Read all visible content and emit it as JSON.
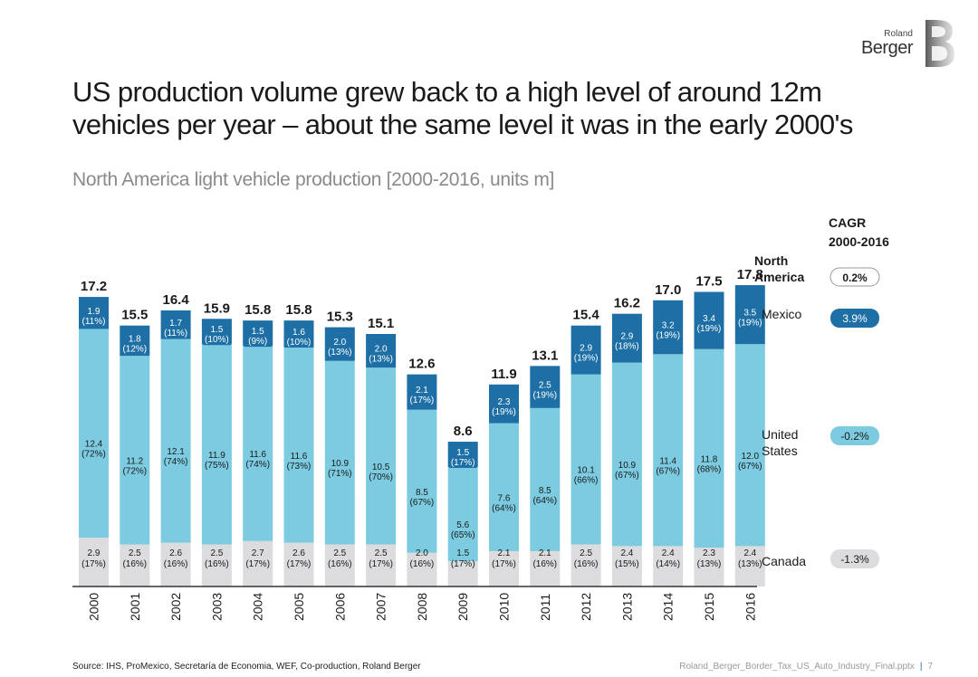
{
  "header": {
    "title_line1": "US production volume grew back to a high level of around 12m",
    "title_line2": "vehicles per year – about the same level it was in the early 2000's",
    "subtitle": "North America light vehicle production [2000-2016, units m]"
  },
  "logo": {
    "line1": "Roland",
    "line2": "Berger"
  },
  "footer": {
    "source": "Source: IHS, ProMexico, Secretaría de Economia, WEF, Co-production, Roland Berger",
    "file": "Roland_Berger_Border_Tax_US_Auto_Industry_Final.pptx",
    "page": "7"
  },
  "colors": {
    "mexico": "#1d6fa5",
    "us": "#7ccbe0",
    "canada": "#dcdcdf",
    "axis": "#333333"
  },
  "chart_data": {
    "type": "bar",
    "stacked": true,
    "title": "North America light vehicle production [2000-2016, units m]",
    "categories": [
      "2000",
      "2001",
      "2002",
      "2003",
      "2004",
      "2005",
      "2006",
      "2007",
      "2008",
      "2009",
      "2010",
      "2011",
      "2012",
      "2013",
      "2014",
      "2015",
      "2016"
    ],
    "totals": [
      "17.2",
      "15.5",
      "16.4",
      "15.9",
      "15.8",
      "15.8",
      "15.3",
      "15.1",
      "12.6",
      "8.6",
      "11.9",
      "13.1",
      "15.4",
      "16.2",
      "17.0",
      "17.5",
      "17.8"
    ],
    "total_values": [
      17.2,
      15.5,
      16.4,
      15.9,
      15.8,
      15.8,
      15.3,
      15.1,
      12.6,
      8.6,
      11.9,
      13.1,
      15.4,
      16.2,
      17.0,
      17.5,
      17.8
    ],
    "series": [
      {
        "name": "Canada",
        "values": [
          2.9,
          2.5,
          2.6,
          2.5,
          2.7,
          2.6,
          2.5,
          2.5,
          2.0,
          1.5,
          2.1,
          2.1,
          2.5,
          2.4,
          2.4,
          2.3,
          2.4
        ],
        "value_labels": [
          "2.9",
          "2.5",
          "2.6",
          "2.5",
          "2.7",
          "2.6",
          "2.5",
          "2.5",
          "2.0",
          "1.5",
          "2.1",
          "2.1",
          "2.5",
          "2.4",
          "2.4",
          "2.3",
          "2.4"
        ],
        "shares": [
          "(17%)",
          "(16%)",
          "(16%)",
          "(16%)",
          "(17%)",
          "(17%)",
          "(16%)",
          "(17%)",
          "(16%)",
          "(17%)",
          "(17%)",
          "(16%)",
          "(16%)",
          "(15%)",
          "(14%)",
          "(13%)",
          "(13%)"
        ]
      },
      {
        "name": "United States",
        "values": [
          12.4,
          11.2,
          12.1,
          11.9,
          11.6,
          11.6,
          10.9,
          10.5,
          8.5,
          5.6,
          7.6,
          8.5,
          10.1,
          10.9,
          11.4,
          11.8,
          12.0
        ],
        "value_labels": [
          "12.4",
          "11.2",
          "12.1",
          "11.9",
          "11.6",
          "11.6",
          "10.9",
          "10.5",
          "8.5",
          "5.6",
          "7.6",
          "8.5",
          "10.1",
          "10.9",
          "11.4",
          "11.8",
          "12.0"
        ],
        "shares": [
          "(72%)",
          "(72%)",
          "(74%)",
          "(75%)",
          "(74%)",
          "(73%)",
          "(71%)",
          "(70%)",
          "(67%)",
          "(65%)",
          "(64%)",
          "(64%)",
          "(66%)",
          "(67%)",
          "(67%)",
          "(68%)",
          "(67%)"
        ]
      },
      {
        "name": "Mexico",
        "values": [
          1.9,
          1.8,
          1.7,
          1.5,
          1.5,
          1.6,
          2.0,
          2.0,
          2.1,
          1.5,
          2.3,
          2.5,
          2.9,
          2.9,
          3.2,
          3.4,
          3.5
        ],
        "value_labels": [
          "1.9",
          "1.8",
          "1.7",
          "1.5",
          "1.5",
          "1.6",
          "2.0",
          "2.0",
          "2.1",
          "1.5",
          "2.3",
          "2.5",
          "2.9",
          "2.9",
          "3.2",
          "3.4",
          "3.5"
        ],
        "shares": [
          "(11%)",
          "(12%)",
          "(11%)",
          "(10%)",
          "(9%)",
          "(10%)",
          "(13%)",
          "(13%)",
          "(17%)",
          "(17%)",
          "(19%)",
          "(19%)",
          "(19%)",
          "(18%)",
          "(19%)",
          "(19%)",
          "(19%)"
        ]
      }
    ],
    "ylim": [
      0,
      18
    ],
    "legend": {
      "cagr_title_line1": "CAGR",
      "cagr_title_line2": "2000-2016",
      "na_label_line1": "North",
      "na_label_line2": "America",
      "na_cagr": "0.2%",
      "mexico_label": "Mexico",
      "mexico_cagr": "3.9%",
      "us_label_line1": "United",
      "us_label_line2": "States",
      "us_cagr": "-0.2%",
      "canada_label": "Canada",
      "canada_cagr": "-1.3%"
    }
  }
}
